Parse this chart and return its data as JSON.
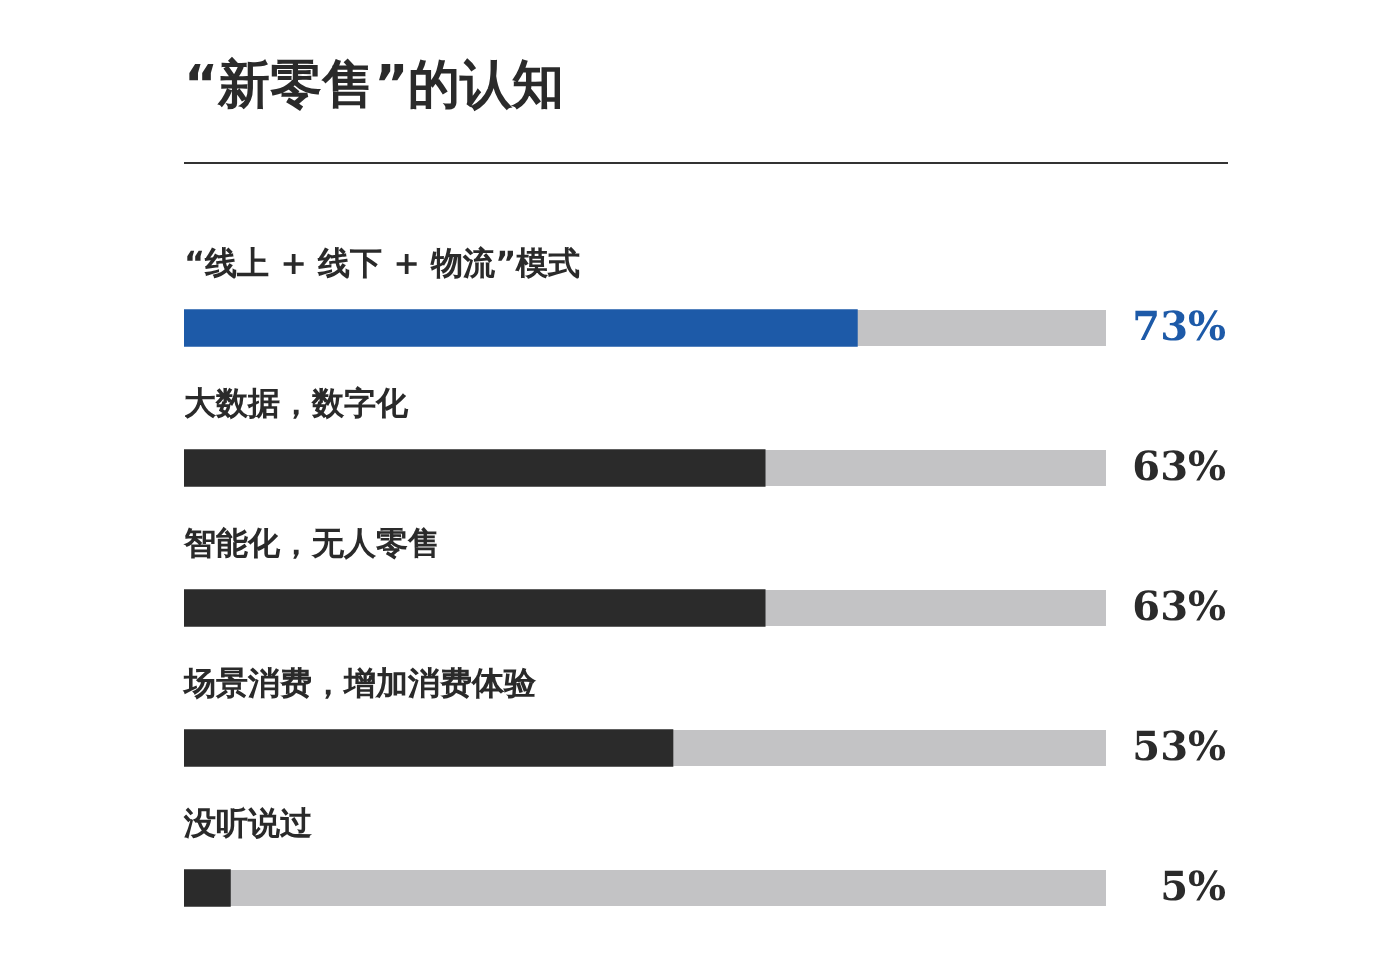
{
  "chart_data": {
    "type": "bar",
    "orientation": "horizontal",
    "title": "“新零售”的认知",
    "categories": [
      "“线上 + 线下 + 物流”模式",
      "大数据，数字化",
      "智能化，无人零售",
      "场景消费，增加消费体验",
      "没听说过"
    ],
    "values": [
      73,
      63,
      63,
      53,
      5
    ],
    "colors": [
      "#1d5aa8",
      "#2b2b2b",
      "#2b2b2b",
      "#2b2b2b",
      "#2b2b2b"
    ],
    "value_labels": [
      "73%",
      "63%",
      "63%",
      "53%",
      "5%"
    ],
    "xlim": [
      0,
      100
    ],
    "tick_labels": "y"
  }
}
